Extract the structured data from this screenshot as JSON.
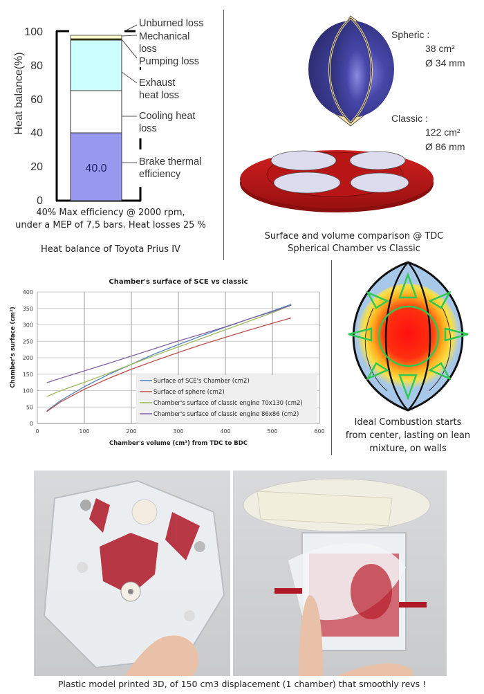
{
  "heat_balance": {
    "chart_data": {
      "type": "bar",
      "title": "Heat balance of Toyota Prius IV",
      "ylabel": "Heat balance(%)",
      "ylim": [
        0,
        100
      ],
      "yticks": [
        "0",
        "20",
        "40",
        "60",
        "80",
        "100"
      ],
      "stacked_segments": [
        {
          "name": "Brake thermal efficiency",
          "from": 0,
          "to": 40,
          "color": "#9999f0",
          "label": "40.0"
        },
        {
          "name": "Cooling heat loss",
          "from": 40,
          "to": 64.5,
          "color": "#ffffff"
        },
        {
          "name": "Exhaust heat loss",
          "from": 64.5,
          "to": 94.5,
          "color": "#ccffff"
        },
        {
          "name": "Pumping loss",
          "from": 94.5,
          "to": 95.5,
          "color": "#333300"
        },
        {
          "name": "Mechanical loss",
          "from": 95.5,
          "to": 97.5,
          "color": "#ffffcc"
        },
        {
          "name": "Unburned loss",
          "from": 97.5,
          "to": 100,
          "color": "#ffffff"
        }
      ]
    },
    "bar_value_label": "40.0",
    "legend_labels": {
      "unburned": "Unburned loss",
      "mechanical_1": "Mechanical",
      "mechanical_2": "loss",
      "pumping": "Pumping loss",
      "exhaust_1": "Exhaust",
      "exhaust_2": "heat loss",
      "cooling_1": "Cooling heat",
      "cooling_2": "loss",
      "brake_1": "Brake thermal",
      "brake_2": "efficiency"
    },
    "note_line1": "40% Max efficiency @ 2000 rpm,",
    "note_line2": "under a MEP of 7.5 bars. Heat losses 25 %",
    "caption": "Heat balance of Toyota Prius IV"
  },
  "comparison": {
    "spheric_label": "Spheric :",
    "spheric_area": "38 cm²",
    "spheric_diameter": "Ø 34 mm",
    "classic_label": "Classic :",
    "classic_area": "122 cm²",
    "classic_diameter": "Ø 86 mm",
    "caption_line1": "Surface and volume comparison @ TDC",
    "caption_line2": "Spherical Chamber vs Classic",
    "colors": {
      "sphere": "#3a3a8c",
      "tip": "#f5dfa0",
      "disc": "#c01818",
      "valve": "#dcdcee"
    }
  },
  "surface_chart": {
    "chart_data": {
      "type": "line",
      "title": "Chamber's surface of SCE vs classic",
      "xlabel": "Chamber's volume (cm³) from TDC to BDC",
      "ylabel": "Chamber's surface (cm²)",
      "xlim": [
        0,
        600
      ],
      "ylim": [
        0,
        400
      ],
      "xticks": [
        "0",
        "100",
        "200",
        "300",
        "400",
        "500",
        "600"
      ],
      "yticks": [
        "0",
        "50",
        "100",
        "150",
        "200",
        "250",
        "300",
        "350",
        "400"
      ],
      "grid": true,
      "legend_position": "inside-lower-right",
      "x": [
        20,
        50,
        100,
        150,
        200,
        250,
        300,
        350,
        400,
        450,
        500,
        540
      ],
      "series": [
        {
          "name": "Surface of SCE's Chamber (cm2)",
          "color": "#4f81bd",
          "values": [
            38,
            70,
            112,
            148,
            180,
            212,
            240,
            267,
            293,
            318,
            342,
            362
          ]
        },
        {
          "name": "Surface of sphere (cm2)",
          "color": "#c0504d",
          "values": [
            36,
            66,
            104,
            136,
            165,
            191,
            216,
            240,
            262,
            284,
            305,
            321
          ]
        },
        {
          "name": "Chamber's surface of classic engine 70x130 (cm2)",
          "color": "#9bbb59",
          "values": [
            82,
            100,
            125,
            152,
            180,
            207,
            233,
            259,
            285,
            311,
            337,
            360
          ]
        },
        {
          "name": "Chamber's surface of classic engine 86x86 (cm2)",
          "color": "#8064a2",
          "values": [
            124,
            138,
            160,
            182,
            205,
            228,
            251,
            272,
            294,
            318,
            340,
            360
          ]
        }
      ]
    },
    "legend": [
      "Surface of SCE's Chamber (cm2)",
      "Surface of sphere (cm2)",
      "Chamber's surface of classic engine 70x130 (cm2)",
      "Chamber's surface of classic engine 86x86 (cm2)"
    ]
  },
  "combustion": {
    "caption_line1": "Ideal Combustion starts",
    "caption_line2": "from center, lasting on lean",
    "caption_line3": "mixture, on walls"
  },
  "photos": {
    "caption": "Plastic model printed 3D, of 150 cm3 displacement (1 chamber) that smoothly revs !"
  }
}
